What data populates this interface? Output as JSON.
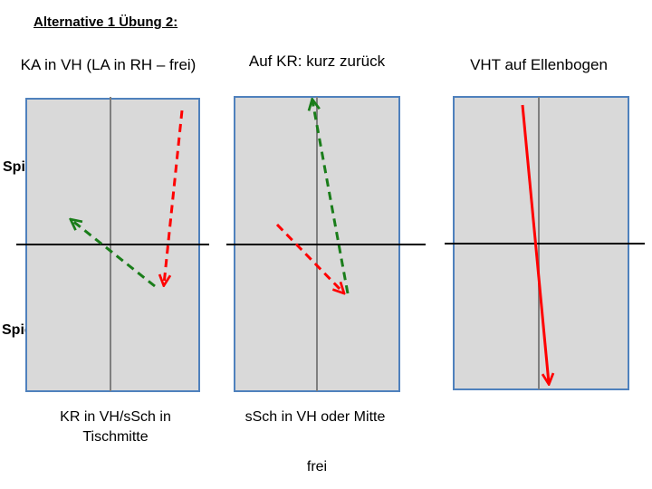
{
  "title": "Alternative 1 Übung 2:",
  "players": {
    "top": "Spieler B",
    "bottom": "Spieler A"
  },
  "tables": [
    {
      "heading": "KA in VH (LA in RH – frei)",
      "caption": "KR in VH/sSch in Tischmitte"
    },
    {
      "heading": "Auf KR: kurz zurück",
      "caption": "sSch in VH oder Mitte"
    },
    {
      "heading": "VHT auf Ellenbogen",
      "caption": ""
    }
  ],
  "footer": "frei",
  "colors": {
    "table_fill": "#d9d9d9",
    "table_border": "#4f81bd",
    "center_line": "#7f7f7f",
    "net": "#000000",
    "red": "#ff0000",
    "green": "#1a7d1a"
  }
}
